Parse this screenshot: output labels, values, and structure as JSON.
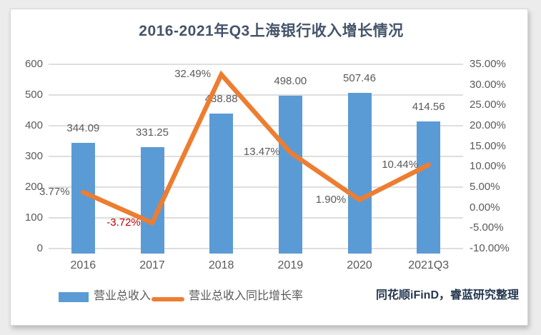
{
  "title": "2016-2021年Q3上海银行收入增长情况",
  "source_note": "同花顺iFinD，睿蓝研究整理",
  "legend": {
    "items": [
      {
        "label": "营业总收入",
        "marker": "bar-swatch"
      },
      {
        "label": "营业总收入同比增长率",
        "marker": "line-swatch"
      }
    ],
    "position": "bottom"
  },
  "colors": {
    "bar": "#5B9BD5",
    "line": "#ED7D31",
    "title_text": "#44546A",
    "axis_text": "#595959",
    "data_label_text": "#595959",
    "negative_label_text": "#C00000",
    "gridline": "#DEDEDE",
    "source_text": "#24374F",
    "card_background": "#FFFFFF",
    "page_background": "#ECECEC"
  },
  "chart_data": {
    "type": "bar+line",
    "title": "2016-2021年Q3上海银行收入增长情况",
    "categories": [
      "2016",
      "2017",
      "2018",
      "2019",
      "2020",
      "2021Q3"
    ],
    "series": [
      {
        "name": "营业总收入",
        "type": "bar",
        "axis": "left",
        "values": [
          344.09,
          331.25,
          438.88,
          498.0,
          507.46,
          414.56
        ],
        "labels": [
          "344.09",
          "331.25",
          "438.88",
          "498.00",
          "507.46",
          "414.56"
        ]
      },
      {
        "name": "营业总收入同比增长率",
        "type": "line",
        "axis": "right",
        "values": [
          3.77,
          -3.72,
          32.49,
          13.47,
          1.9,
          10.44
        ],
        "labels": [
          "3.77%",
          "-3.72%",
          "32.49%",
          "13.47%",
          "1.90%",
          "10.44%"
        ]
      }
    ],
    "axes": {
      "left": {
        "min": 0,
        "max": 600,
        "step": 100,
        "ticks": [
          "600",
          "500",
          "400",
          "300",
          "200",
          "100",
          "0"
        ]
      },
      "right": {
        "min": -10,
        "max": 35,
        "step": 5,
        "ticks": [
          "35.00%",
          "30.00%",
          "25.00%",
          "20.00%",
          "15.00%",
          "10.00%",
          "5.00%",
          "0.00%",
          "-5.00%",
          "-10.00%"
        ]
      }
    },
    "grid": true,
    "legend_position": "bottom"
  }
}
